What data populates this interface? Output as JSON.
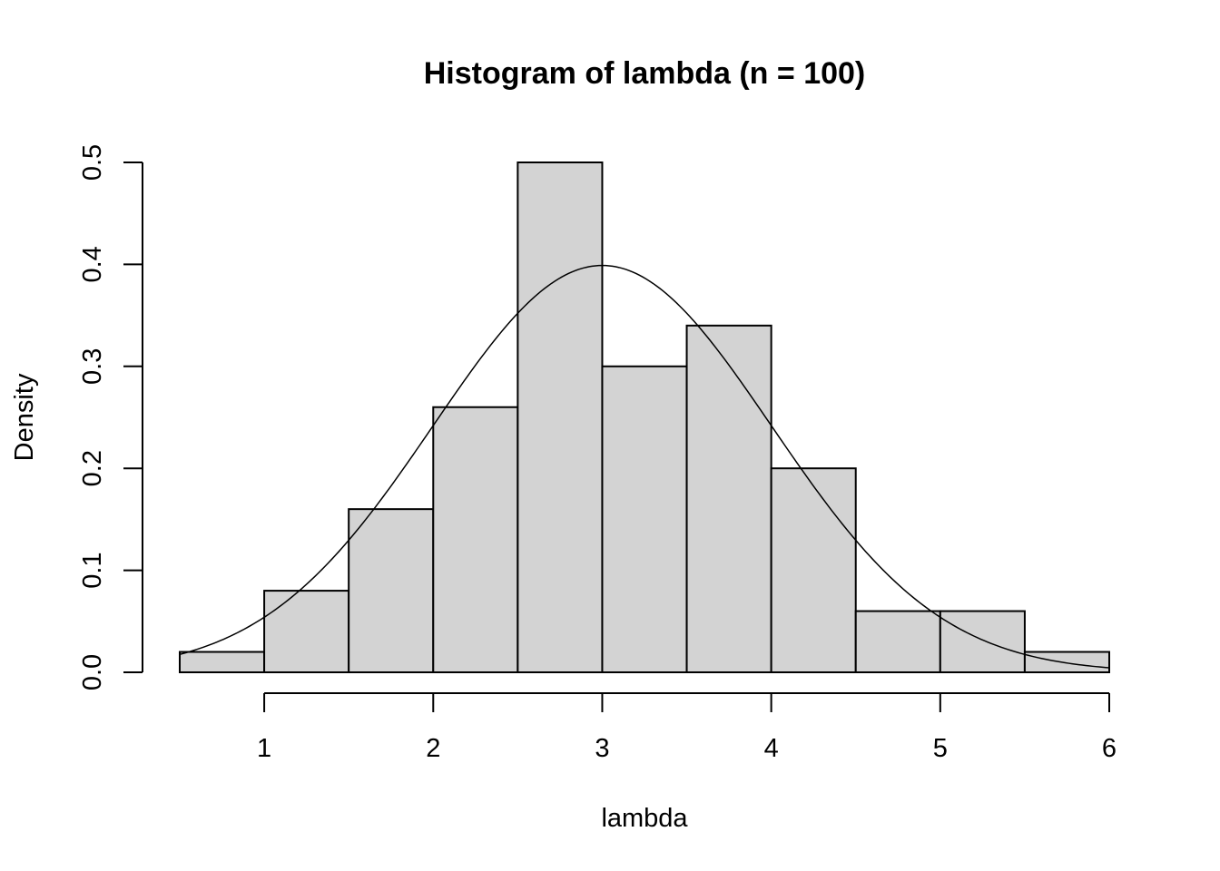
{
  "chart_data": {
    "type": "bar",
    "title": "Histogram of lambda (n = 100)",
    "xlabel": "lambda",
    "ylabel": "Density",
    "bins": [
      {
        "x0": 0.5,
        "x1": 1.0,
        "density": 0.02
      },
      {
        "x0": 1.0,
        "x1": 1.5,
        "density": 0.08
      },
      {
        "x0": 1.5,
        "x1": 2.0,
        "density": 0.16
      },
      {
        "x0": 2.0,
        "x1": 2.5,
        "density": 0.26
      },
      {
        "x0": 2.5,
        "x1": 3.0,
        "density": 0.5
      },
      {
        "x0": 3.0,
        "x1": 3.5,
        "density": 0.3
      },
      {
        "x0": 3.5,
        "x1": 4.0,
        "density": 0.34
      },
      {
        "x0": 4.0,
        "x1": 4.5,
        "density": 0.2
      },
      {
        "x0": 4.5,
        "x1": 5.0,
        "density": 0.06
      },
      {
        "x0": 5.0,
        "x1": 5.5,
        "density": 0.06
      },
      {
        "x0": 5.5,
        "x1": 6.0,
        "density": 0.02
      }
    ],
    "x_ticks": [
      {
        "value": 1,
        "label": "1"
      },
      {
        "value": 2,
        "label": "2"
      },
      {
        "value": 3,
        "label": "3"
      },
      {
        "value": 4,
        "label": "4"
      },
      {
        "value": 5,
        "label": "5"
      },
      {
        "value": 6,
        "label": "6"
      }
    ],
    "y_ticks": [
      {
        "value": 0.0,
        "label": "0.0"
      },
      {
        "value": 0.1,
        "label": "0.1"
      },
      {
        "value": 0.2,
        "label": "0.2"
      },
      {
        "value": 0.3,
        "label": "0.3"
      },
      {
        "value": 0.4,
        "label": "0.4"
      },
      {
        "value": 0.5,
        "label": "0.5"
      }
    ],
    "xlim": [
      0.5,
      6.0
    ],
    "ylim": [
      0.0,
      0.5
    ],
    "overlay_curve": {
      "type": "normal-density",
      "mean": 3,
      "sd": 1
    },
    "grid": false,
    "legend": "none"
  }
}
